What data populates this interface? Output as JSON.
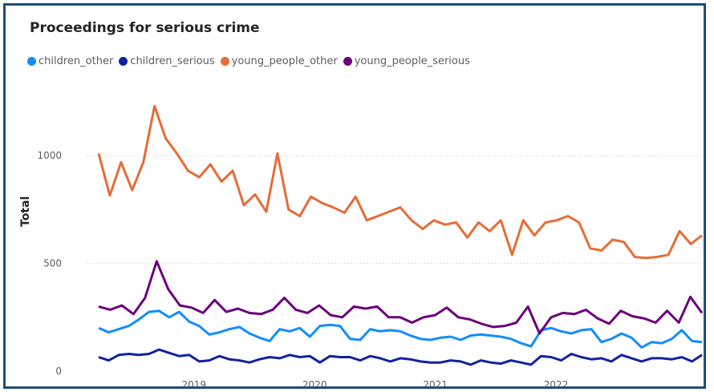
{
  "title": "Proceedings for serious crime",
  "chart_data": {
    "type": "line",
    "title": "Proceedings for serious crime",
    "xlabel": "",
    "ylabel": "Total",
    "x_range": [
      "2018-04",
      "2022-07"
    ],
    "ylim": [
      0,
      1250
    ],
    "y_ticks": [
      0,
      500,
      1000
    ],
    "x_ticks": [
      "2019",
      "2020",
      "2021",
      "2022"
    ],
    "grid": "horizontal dotted",
    "legend_position": "top-left",
    "series": [
      {
        "name": "children_other",
        "color": "#118dff",
        "values": [
          200,
          180,
          195,
          210,
          240,
          275,
          280,
          250,
          275,
          230,
          210,
          170,
          180,
          195,
          205,
          175,
          155,
          140,
          195,
          185,
          200,
          160,
          210,
          215,
          210,
          150,
          145,
          195,
          185,
          190,
          185,
          165,
          150,
          145,
          155,
          160,
          145,
          165,
          170,
          165,
          160,
          150,
          130,
          115,
          190,
          200,
          185,
          175,
          190,
          195,
          135,
          150,
          175,
          155,
          110,
          135,
          130,
          150,
          190,
          140,
          135
        ]
      },
      {
        "name": "children_serious",
        "color": "#12239e",
        "values": [
          65,
          50,
          75,
          80,
          75,
          80,
          100,
          85,
          70,
          75,
          45,
          50,
          70,
          55,
          50,
          40,
          55,
          65,
          60,
          75,
          65,
          70,
          40,
          70,
          65,
          65,
          50,
          70,
          60,
          45,
          60,
          55,
          45,
          40,
          40,
          50,
          45,
          30,
          50,
          40,
          35,
          50,
          40,
          30,
          70,
          65,
          50,
          80,
          65,
          55,
          60,
          45,
          75,
          60,
          45,
          60,
          60,
          55,
          65,
          45,
          75
        ]
      },
      {
        "name": "young_people_other",
        "color": "#e66c37",
        "values": [
          1010,
          815,
          970,
          840,
          970,
          1230,
          1080,
          1010,
          930,
          900,
          960,
          880,
          930,
          770,
          820,
          740,
          1010,
          750,
          720,
          810,
          780,
          760,
          735,
          810,
          700,
          720,
          740,
          760,
          700,
          660,
          700,
          680,
          690,
          620,
          690,
          650,
          700,
          540,
          700,
          630,
          690,
          700,
          720,
          690,
          570,
          560,
          610,
          600,
          530,
          525,
          530,
          540,
          650,
          590,
          630
        ]
      },
      {
        "name": "young_people_serious",
        "color": "#6b007b",
        "values": [
          300,
          285,
          305,
          265,
          340,
          510,
          380,
          305,
          295,
          270,
          330,
          275,
          290,
          270,
          265,
          285,
          340,
          285,
          270,
          305,
          260,
          250,
          300,
          290,
          300,
          250,
          250,
          225,
          250,
          260,
          295,
          250,
          240,
          220,
          205,
          210,
          225,
          300,
          175,
          250,
          270,
          265,
          285,
          245,
          220,
          280,
          255,
          245,
          225,
          280,
          225,
          345,
          270
        ]
      }
    ]
  }
}
